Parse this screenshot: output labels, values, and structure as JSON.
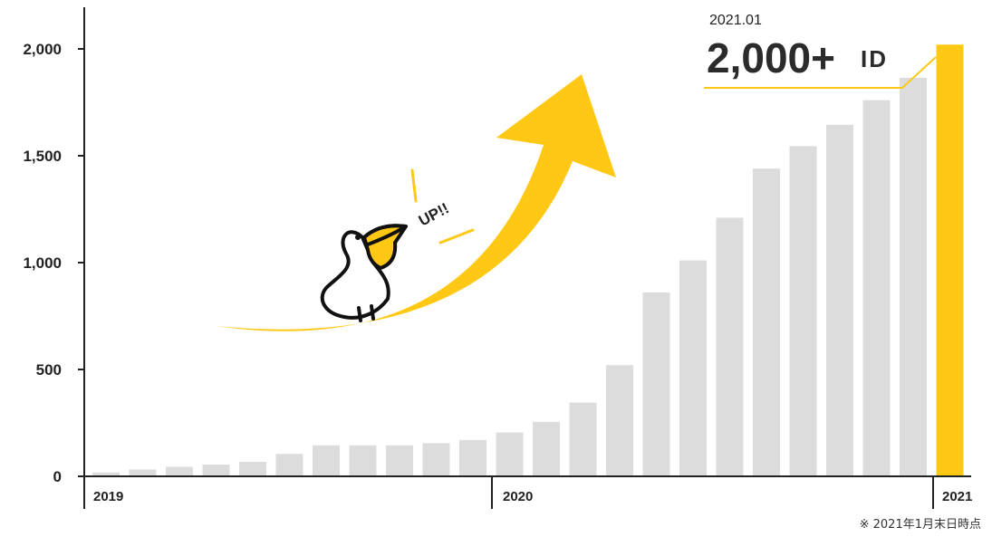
{
  "chart_data": {
    "type": "bar",
    "yticks": [
      0,
      500,
      1000,
      1500,
      2000
    ],
    "ytick_labels": [
      "0",
      "500",
      "1,000",
      "1,500",
      "2,000"
    ],
    "ylim": [
      0,
      2200
    ],
    "x_group_labels": [
      "2019",
      "2020",
      "2021"
    ],
    "values": [
      18,
      32,
      45,
      55,
      68,
      105,
      145,
      145,
      145,
      155,
      170,
      205,
      255,
      345,
      520,
      860,
      1010,
      1210,
      1440,
      1545,
      1645,
      1760,
      1865,
      2020
    ],
    "highlight_index": 23,
    "colors": {
      "bar": "#dcdcdc",
      "highlight": "#ffc814",
      "axis": "#222222",
      "accent": "#ffc814"
    },
    "callout": {
      "date": "2021.01",
      "value": "2,000+",
      "unit": "ID"
    },
    "annotation": "UP!!",
    "footnote": "※ 2021年1月末日時点"
  }
}
